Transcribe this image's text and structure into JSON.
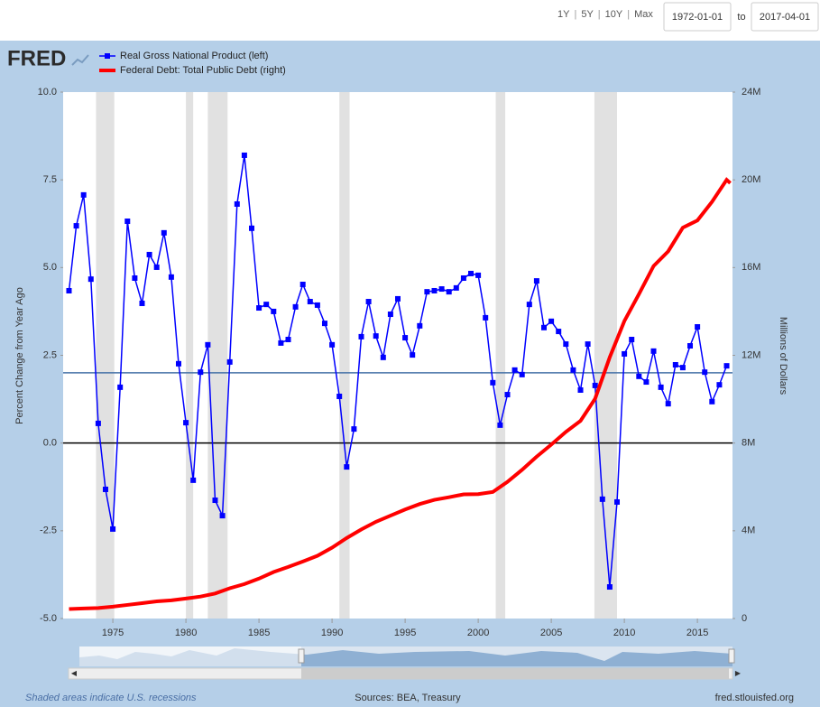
{
  "toolbar": {
    "ranges": [
      "1Y",
      "5Y",
      "10Y",
      "Max"
    ],
    "separator": "|",
    "start": "1972-01-01",
    "to": "to",
    "end": "2017-04-01"
  },
  "logo": "FRED",
  "chart_data": {
    "type": "line",
    "ylabel": "Percent Change from Year Ago",
    "y2label": "Millions of Dollars",
    "xlim": [
      1971.6,
      2017.4
    ],
    "xticks": [
      1975,
      1980,
      1985,
      1990,
      1995,
      2000,
      2005,
      2010,
      2015
    ],
    "ylim": [
      -5,
      10
    ],
    "yticks": [
      {
        "value": -5,
        "label": "-5.0"
      },
      {
        "value": -2.5,
        "label": "-2.5"
      },
      {
        "value": 0,
        "label": "0.0"
      },
      {
        "value": 2.5,
        "label": "2.5"
      },
      {
        "value": 5,
        "label": "5.0"
      },
      {
        "value": 7.5,
        "label": "7.5"
      },
      {
        "value": 10,
        "label": "10.0"
      }
    ],
    "y2lim": [
      0,
      24000000
    ],
    "y2ticks": [
      0,
      {
        "value": 4000000,
        "label": "4M"
      },
      {
        "value": 8000000,
        "label": "8M"
      },
      {
        "value": 12000000,
        "label": "12M"
      },
      {
        "value": 16000000,
        "label": "16M"
      },
      {
        "value": 20000000,
        "label": "20M"
      },
      {
        "value": 24000000,
        "label": "24M"
      }
    ],
    "hline": {
      "value": 2,
      "color": "#4572a7"
    },
    "recessions": [
      [
        1973.85,
        1975.1
      ],
      [
        1980.0,
        1980.5
      ],
      [
        1981.5,
        1982.85
      ],
      [
        1990.5,
        1991.2
      ],
      [
        2001.2,
        2001.85
      ],
      [
        2007.95,
        2009.5
      ]
    ],
    "series": [
      {
        "name": "Real Gross National Product (left)",
        "color": "#0000ff",
        "marker": "square",
        "x": [
          1972,
          1972.5,
          1973,
          1973.5,
          1974,
          1974.5,
          1975,
          1975.5,
          1976,
          1976.5,
          1977,
          1977.5,
          1978,
          1978.5,
          1979,
          1979.5,
          1980,
          1980.5,
          1981,
          1981.5,
          1982,
          1982.5,
          1983,
          1983.5,
          1984,
          1984.5,
          1985,
          1985.5,
          1986,
          1986.5,
          1987,
          1987.5,
          1988,
          1988.5,
          1989,
          1989.5,
          1990,
          1990.5,
          1991,
          1991.5,
          1992,
          1992.5,
          1993,
          1993.5,
          1994,
          1994.5,
          1995,
          1995.5,
          1996,
          1996.5,
          1997,
          1997.5,
          1998,
          1998.5,
          1999,
          1999.5,
          2000,
          2000.5,
          2001,
          2001.5,
          2002,
          2002.5,
          2003,
          2003.5,
          2004,
          2004.5,
          2005,
          2005.5,
          2006,
          2006.5,
          2007,
          2007.5,
          2008,
          2008.5,
          2009,
          2009.5,
          2010,
          2010.5,
          2011,
          2011.5,
          2012,
          2012.5,
          2013,
          2013.5,
          2014,
          2014.5,
          2015,
          2015.5,
          2016,
          2016.5,
          2017
        ],
        "values": [
          4.34,
          6.19,
          7.07,
          4.67,
          0.56,
          -1.32,
          -2.45,
          1.59,
          6.32,
          4.7,
          3.98,
          5.37,
          5.01,
          5.99,
          4.73,
          2.26,
          0.58,
          -1.06,
          2.02,
          2.8,
          -1.63,
          -2.07,
          2.31,
          6.81,
          8.2,
          6.12,
          3.85,
          3.95,
          3.75,
          2.85,
          2.95,
          3.88,
          4.52,
          4.03,
          3.93,
          3.41,
          2.8,
          1.33,
          -0.68,
          0.4,
          3.03,
          4.03,
          3.05,
          2.44,
          3.67,
          4.11,
          3.0,
          2.51,
          3.34,
          4.31,
          4.34,
          4.39,
          4.31,
          4.42,
          4.7,
          4.83,
          4.78,
          3.57,
          1.72,
          0.51,
          1.38,
          2.08,
          1.95,
          3.95,
          4.62,
          3.29,
          3.47,
          3.18,
          2.82,
          2.08,
          1.51,
          2.82,
          1.64,
          -1.6,
          -4.1,
          -1.68,
          2.54,
          2.95,
          1.9,
          1.74,
          2.62,
          1.59,
          1.12,
          2.23,
          2.15,
          2.77,
          3.31,
          2.02,
          1.18,
          1.66,
          2.2
        ]
      },
      {
        "name": "Federal Debt: Total Public Debt (right)",
        "color": "#ff0000",
        "axis": "y2",
        "x": [
          1972,
          1973,
          1974,
          1975,
          1976,
          1977,
          1978,
          1979,
          1980,
          1981,
          1982,
          1983,
          1984,
          1985,
          1986,
          1987,
          1988,
          1989,
          1990,
          1991,
          1992,
          1993,
          1994,
          1995,
          1996,
          1997,
          1998,
          1999,
          2000,
          2001,
          2002,
          2003,
          2004,
          2005,
          2006,
          2007,
          2008,
          2009,
          2010,
          2011,
          2012,
          2013,
          2014,
          2015,
          2016,
          2016.5,
          2017,
          2017.25
        ],
        "values": [
          430000,
          460000,
          480000,
          540000,
          620000,
          700000,
          780000,
          830000,
          910000,
          1000000,
          1140000,
          1380000,
          1570000,
          1820000,
          2120000,
          2350000,
          2600000,
          2860000,
          3230000,
          3670000,
          4060000,
          4410000,
          4690000,
          4970000,
          5220000,
          5410000,
          5530000,
          5660000,
          5670000,
          5770000,
          6230000,
          6780000,
          7380000,
          7930000,
          8510000,
          9010000,
          10020000,
          11910000,
          13560000,
          14790000,
          16070000,
          16740000,
          17820000,
          18150000,
          19000000,
          19500000,
          20000000,
          19850000
        ]
      }
    ]
  },
  "footer": {
    "note": "Shaded areas indicate U.S. recessions",
    "sources": "Sources: BEA, Treasury",
    "site": "fred.stlouisfed.org"
  }
}
